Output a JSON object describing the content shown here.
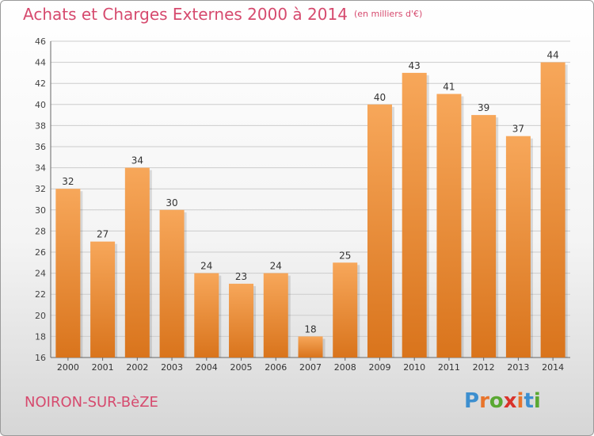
{
  "header": {
    "title": "Achats et Charges Externes 2000 à 2014",
    "unit": "(en milliers d'€)"
  },
  "footer": {
    "town": "NOIRON-SUR-BèZE",
    "logo": "Proxiti"
  },
  "colors": {
    "title": "#d64a6e",
    "bar_light": "#f7a75a",
    "bar_dark": "#d9741c",
    "grid": "#cccccc",
    "logo_letters": [
      "#3d8fcf",
      "#e8742b",
      "#5aa832",
      "#d9332b",
      "#e8742b",
      "#3d8fcf",
      "#5aa832"
    ]
  },
  "chart_data": {
    "type": "bar",
    "title": "Achats et Charges Externes 2000 à 2014",
    "subtitle": "(en milliers d'€)",
    "categories": [
      "2000",
      "2001",
      "2002",
      "2003",
      "2004",
      "2005",
      "2006",
      "2007",
      "2008",
      "2009",
      "2010",
      "2011",
      "2012",
      "2013",
      "2014"
    ],
    "values": [
      32,
      27,
      34,
      30,
      24,
      23,
      24,
      18,
      25,
      40,
      43,
      41,
      39,
      37,
      44
    ],
    "ylim": [
      16,
      46
    ],
    "yticks": [
      16,
      18,
      20,
      22,
      24,
      26,
      28,
      30,
      32,
      34,
      36,
      38,
      40,
      42,
      44,
      46
    ],
    "grid": true,
    "data_labels": true
  }
}
